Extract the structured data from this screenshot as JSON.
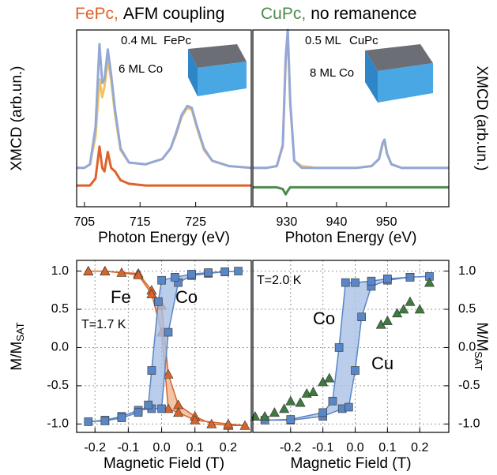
{
  "chart_data": [
    {
      "type": "line",
      "title": [
        "FePc,",
        "AFM coupling"
      ],
      "title_colors": [
        "#e0622a",
        "#000000"
      ],
      "xlabel": "Photon Energy (eV)",
      "ylabel": "XMCD (arb.un.)",
      "ylabel_side": "left",
      "xlim": [
        703.6,
        735
      ],
      "ylim": [
        0,
        1
      ],
      "xticks": [
        705,
        715,
        725
      ],
      "grid": false,
      "annotations": [
        {
          "text": "0.4 ML",
          "color": "#000000"
        },
        {
          "text": "FePc",
          "color": "#e0622a"
        },
        {
          "text": "6 ML Co",
          "color": "#000000"
        }
      ],
      "x": [
        703.6,
        705,
        706,
        707,
        707.7,
        708.2,
        708.6,
        709.2,
        709.8,
        710.5,
        711.5,
        713,
        716,
        719,
        720.5,
        721.5,
        722.5,
        723.5,
        724.3,
        725.2,
        726.5,
        728,
        731,
        735
      ],
      "series": [
        {
          "color": "#f2c45a",
          "values": [
            0.22,
            0.22,
            0.24,
            0.4,
            0.72,
            0.62,
            0.68,
            0.83,
            0.72,
            0.52,
            0.32,
            0.25,
            0.24,
            0.27,
            0.33,
            0.41,
            0.51,
            0.56,
            0.55,
            0.45,
            0.32,
            0.26,
            0.23,
            0.22
          ]
        },
        {
          "color": "#94a8d8",
          "values": [
            0.22,
            0.22,
            0.24,
            0.45,
            0.92,
            0.7,
            0.72,
            0.89,
            0.75,
            0.55,
            0.33,
            0.25,
            0.24,
            0.27,
            0.33,
            0.42,
            0.52,
            0.57,
            0.56,
            0.46,
            0.33,
            0.26,
            0.23,
            0.22
          ]
        },
        {
          "color": "#e0622a",
          "values": [
            0.12,
            0.12,
            0.12,
            0.16,
            0.34,
            0.22,
            0.2,
            0.31,
            0.22,
            0.2,
            0.15,
            0.13,
            0.12,
            0.12,
            0.12,
            0.12,
            0.12,
            0.12,
            0.12,
            0.12,
            0.12,
            0.12,
            0.12,
            0.12
          ]
        }
      ]
    },
    {
      "type": "line",
      "title": [
        "CuPc,",
        "no remanence"
      ],
      "title_colors": [
        "#4e8a4e",
        "#000000"
      ],
      "xlabel": "Photon Energy (eV)",
      "ylabel": "XMCD (arb.un.)",
      "ylabel_side": "right",
      "xlim": [
        923.2,
        962.5
      ],
      "ylim": [
        0,
        1
      ],
      "xticks": [
        930,
        940,
        950
      ],
      "grid": false,
      "annotations": [
        {
          "text": "0.5 ML",
          "color": "#000000"
        },
        {
          "text": "CuPc",
          "color": "#4e8a4e"
        },
        {
          "text": "8 ML Co",
          "color": "#000000"
        }
      ],
      "x": [
        923.2,
        926,
        928,
        929.2,
        929.8,
        930.2,
        930.7,
        931.5,
        933,
        936,
        940,
        944,
        947,
        948.5,
        949.2,
        949.6,
        950.1,
        951,
        953,
        957,
        962.5
      ],
      "series": [
        {
          "color": "#f2c45a",
          "values": [
            0.22,
            0.22,
            0.23,
            0.34,
            0.83,
            0.98,
            0.58,
            0.26,
            0.23,
            0.22,
            0.22,
            0.22,
            0.23,
            0.27,
            0.35,
            0.37,
            0.3,
            0.24,
            0.22,
            0.22,
            0.22
          ]
        },
        {
          "color": "#94a8d8",
          "values": [
            0.22,
            0.22,
            0.23,
            0.35,
            0.85,
            1.0,
            0.6,
            0.26,
            0.22,
            0.22,
            0.22,
            0.22,
            0.23,
            0.27,
            0.36,
            0.38,
            0.3,
            0.24,
            0.22,
            0.22,
            0.22
          ]
        },
        {
          "color": "#4e8a4e",
          "values": [
            0.11,
            0.11,
            0.11,
            0.1,
            0.07,
            0.09,
            0.11,
            0.11,
            0.11,
            0.11,
            0.11,
            0.11,
            0.11,
            0.11,
            0.11,
            0.11,
            0.11,
            0.11,
            0.11,
            0.11,
            0.11
          ]
        }
      ]
    },
    {
      "type": "hysteresis",
      "xlabel": "Magnetic Field (T)",
      "ylabel": "M/M",
      "ylabel_sub": "SAT",
      "ylabel_side": "left",
      "xlim": [
        -0.255,
        0.269
      ],
      "ylim": [
        -1.11,
        1.14
      ],
      "xticks": [
        -0.2,
        -0.1,
        {
          "value": 0,
          "label": "0.0"
        },
        0.1,
        0.2
      ],
      "yticks": [
        {
          "value": 1,
          "label": "1.0"
        },
        0.5,
        {
          "value": 0,
          "label": "0.0"
        },
        -0.5,
        {
          "value": -1,
          "label": "-1.0"
        }
      ],
      "grid": true,
      "annotations": [
        {
          "text": "T=1.7 K",
          "color": "#000000"
        }
      ],
      "series": [
        {
          "name": "Fe",
          "color": "#d8642a",
          "fill": "#f2b48e",
          "marker": "triangle",
          "x": [
            -0.22,
            -0.17,
            -0.12,
            -0.07,
            -0.03,
            0.0,
            0.02,
            0.05,
            0.1,
            0.15,
            0.2,
            0.25,
            0.2,
            0.1,
            0.05,
            0.02,
            0.0,
            -0.03,
            -0.07,
            -0.17,
            -0.22
          ],
          "values": [
            1.0,
            1.0,
            0.98,
            0.97,
            0.75,
            0.55,
            -0.35,
            -0.75,
            -0.9,
            -1.0,
            -1.02,
            -1.02,
            -1.0,
            -0.95,
            -0.85,
            -0.8,
            0.2,
            0.7,
            0.95,
            1.0,
            1.0
          ]
        },
        {
          "name": "Co",
          "color": "#5b86c5",
          "fill": "#a9c1e6",
          "marker": "square",
          "x": [
            -0.22,
            -0.17,
            -0.12,
            -0.07,
            -0.03,
            0.0,
            0.02,
            0.05,
            0.09,
            0.14,
            0.19,
            0.23,
            0.19,
            0.14,
            0.09,
            0.04,
            0.0,
            -0.01,
            -0.03,
            -0.04,
            -0.07,
            -0.12,
            -0.17
          ],
          "values": [
            -0.97,
            -0.95,
            -0.9,
            -0.82,
            -0.8,
            -0.8,
            0.2,
            0.85,
            0.94,
            0.97,
            0.99,
            1.0,
            0.99,
            0.98,
            0.96,
            0.92,
            0.88,
            0.6,
            -0.3,
            -0.75,
            -0.85,
            -0.92,
            -0.96
          ]
        }
      ]
    },
    {
      "type": "hysteresis",
      "xlabel": "Magnetic Field (T)",
      "ylabel": "M/M",
      "ylabel_sub": "SAT",
      "ylabel_side": "right",
      "xlim": [
        -0.317,
        0.29
      ],
      "ylim": [
        -1.11,
        1.14
      ],
      "xticks": [
        -0.2,
        -0.1,
        {
          "value": 0,
          "label": "0.0"
        },
        0.1,
        0.2
      ],
      "yticks": [
        {
          "value": 1,
          "label": "1.0"
        },
        0.5,
        {
          "value": 0,
          "label": "0.0"
        },
        -0.5,
        {
          "value": -1,
          "label": "-1.0"
        }
      ],
      "grid": true,
      "annotations": [
        {
          "text": "T=2.0 K",
          "color": "#000000"
        }
      ],
      "series": [
        {
          "name": "Co",
          "color": "#5b86c5",
          "fill": "#a9c1e6",
          "marker": "square",
          "x": [
            -0.28,
            -0.2,
            -0.1,
            -0.04,
            -0.02,
            0.0,
            0.02,
            0.05,
            0.1,
            0.17,
            0.23,
            0.17,
            0.1,
            0.05,
            0.0,
            -0.03,
            -0.05,
            -0.07,
            -0.1,
            -0.2
          ],
          "values": [
            -0.95,
            -0.95,
            -0.9,
            -0.8,
            -0.78,
            -0.3,
            0.4,
            0.8,
            0.88,
            0.92,
            0.93,
            0.92,
            0.9,
            0.87,
            0.85,
            0.85,
            0.0,
            -0.7,
            -0.85,
            -0.94
          ]
        },
        {
          "name": "Cu",
          "color": "#3f7a3f",
          "marker": "triangle",
          "x": [
            -0.31,
            -0.28,
            -0.25,
            -0.22,
            -0.2,
            -0.17,
            -0.15,
            -0.13,
            -0.1,
            -0.08,
            0.08,
            0.1,
            0.13,
            0.15,
            0.17,
            0.2,
            0.23
          ],
          "values": [
            -0.9,
            -0.9,
            -0.85,
            -0.8,
            -0.7,
            -0.72,
            -0.6,
            -0.58,
            -0.45,
            -0.4,
            0.3,
            0.35,
            0.45,
            0.5,
            0.6,
            0.5,
            0.85
          ]
        }
      ]
    }
  ]
}
